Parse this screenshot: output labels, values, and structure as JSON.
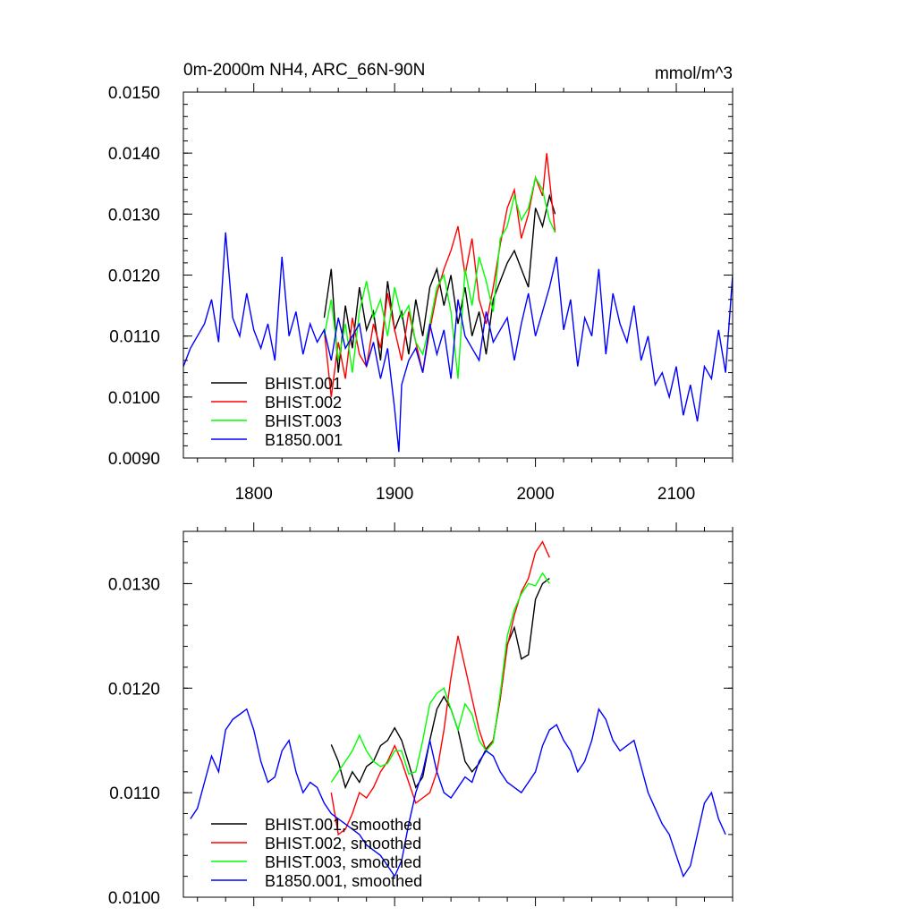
{
  "chart_data": [
    {
      "type": "line",
      "title": "0m-2000m NH4, ARC_66N-90N",
      "units": "mmol/m^3",
      "xlim": [
        1750,
        2140
      ],
      "ylim": [
        0.009,
        0.015
      ],
      "x_ticks": [
        1800,
        1900,
        2000,
        2100
      ],
      "x_tick_labels": [
        "1800",
        "1900",
        "2000",
        "2100"
      ],
      "y_ticks": [
        0.009,
        0.01,
        0.011,
        0.012,
        0.013,
        0.014,
        0.015
      ],
      "y_tick_labels": [
        "0.0090",
        "0.0100",
        "0.0110",
        "0.0120",
        "0.0130",
        "0.0140",
        "0.0150"
      ],
      "legend_position": "bottom-left",
      "series": [
        {
          "name": "BHIST.001",
          "color": "#000000",
          "x": [
            1850,
            1855,
            1860,
            1865,
            1870,
            1875,
            1880,
            1885,
            1890,
            1895,
            1900,
            1905,
            1910,
            1915,
            1920,
            1925,
            1930,
            1935,
            1940,
            1945,
            1950,
            1955,
            1960,
            1965,
            1970,
            1975,
            1980,
            1985,
            1990,
            1995,
            2000,
            2005,
            2010,
            2014
          ],
          "y": [
            0.0113,
            0.0121,
            0.0104,
            0.0115,
            0.0108,
            0.0118,
            0.0111,
            0.0114,
            0.0106,
            0.0119,
            0.0111,
            0.0114,
            0.0107,
            0.0116,
            0.011,
            0.0118,
            0.0121,
            0.0115,
            0.012,
            0.0112,
            0.0118,
            0.011,
            0.0114,
            0.0107,
            0.0116,
            0.0119,
            0.0122,
            0.0124,
            0.0121,
            0.0118,
            0.0131,
            0.0128,
            0.0133,
            0.013
          ]
        },
        {
          "name": "BHIST.002",
          "color": "#ff0000",
          "x": [
            1850,
            1855,
            1860,
            1865,
            1870,
            1875,
            1880,
            1885,
            1890,
            1895,
            1900,
            1905,
            1910,
            1915,
            1920,
            1925,
            1930,
            1935,
            1940,
            1945,
            1950,
            1955,
            1960,
            1965,
            1970,
            1975,
            1980,
            1985,
            1990,
            1995,
            2000,
            2005,
            2008,
            2014
          ],
          "y": [
            0.0111,
            0.01,
            0.0109,
            0.0103,
            0.0113,
            0.0107,
            0.0105,
            0.0112,
            0.0108,
            0.0117,
            0.0111,
            0.0106,
            0.0114,
            0.0109,
            0.0104,
            0.0111,
            0.0117,
            0.0121,
            0.0124,
            0.0128,
            0.012,
            0.0126,
            0.0116,
            0.0112,
            0.0118,
            0.0125,
            0.0131,
            0.0134,
            0.0126,
            0.013,
            0.0136,
            0.0133,
            0.014,
            0.0127
          ]
        },
        {
          "name": "BHIST.003",
          "color": "#00ff00",
          "x": [
            1850,
            1855,
            1860,
            1865,
            1870,
            1875,
            1880,
            1885,
            1890,
            1895,
            1900,
            1905,
            1910,
            1915,
            1920,
            1925,
            1930,
            1935,
            1940,
            1945,
            1950,
            1955,
            1960,
            1965,
            1970,
            1975,
            1980,
            1985,
            1990,
            1995,
            2000,
            2005,
            2010,
            2014
          ],
          "y": [
            0.011,
            0.0116,
            0.0106,
            0.0112,
            0.0104,
            0.0114,
            0.0119,
            0.0113,
            0.0116,
            0.011,
            0.0118,
            0.0113,
            0.0115,
            0.0109,
            0.0107,
            0.0112,
            0.0118,
            0.012,
            0.0114,
            0.0103,
            0.0121,
            0.0115,
            0.0123,
            0.0119,
            0.0114,
            0.0126,
            0.0128,
            0.0133,
            0.0129,
            0.0131,
            0.0136,
            0.0134,
            0.0129,
            0.0127
          ]
        },
        {
          "name": "B1850.001",
          "color": "#0000ff",
          "x": [
            1750,
            1755,
            1760,
            1765,
            1770,
            1775,
            1780,
            1785,
            1790,
            1795,
            1800,
            1805,
            1810,
            1815,
            1820,
            1825,
            1830,
            1835,
            1840,
            1845,
            1850,
            1855,
            1860,
            1865,
            1870,
            1875,
            1880,
            1885,
            1890,
            1895,
            1900,
            1903,
            1905,
            1910,
            1915,
            1920,
            1925,
            1930,
            1935,
            1940,
            1945,
            1950,
            1955,
            1960,
            1965,
            1970,
            1975,
            1980,
            1985,
            1990,
            1995,
            2000,
            2005,
            2010,
            2015,
            2020,
            2025,
            2030,
            2035,
            2040,
            2045,
            2050,
            2055,
            2060,
            2065,
            2070,
            2075,
            2080,
            2085,
            2090,
            2095,
            2100,
            2105,
            2110,
            2115,
            2120,
            2125,
            2130,
            2135,
            2140
          ],
          "y": [
            0.0105,
            0.0108,
            0.011,
            0.0112,
            0.0116,
            0.0109,
            0.0127,
            0.0113,
            0.011,
            0.0117,
            0.0111,
            0.0108,
            0.0112,
            0.0106,
            0.0123,
            0.011,
            0.0114,
            0.0107,
            0.0112,
            0.0109,
            0.0111,
            0.0106,
            0.0113,
            0.0108,
            0.011,
            0.0112,
            0.0105,
            0.0109,
            0.0103,
            0.0108,
            0.0098,
            0.0091,
            0.0102,
            0.0106,
            0.0108,
            0.0104,
            0.0112,
            0.0107,
            0.0111,
            0.0103,
            0.0116,
            0.011,
            0.0108,
            0.0106,
            0.0114,
            0.0109,
            0.0111,
            0.0113,
            0.0106,
            0.0112,
            0.0117,
            0.011,
            0.0114,
            0.0118,
            0.0123,
            0.0111,
            0.0116,
            0.0105,
            0.0113,
            0.011,
            0.0121,
            0.0107,
            0.0117,
            0.0112,
            0.0109,
            0.0115,
            0.0106,
            0.011,
            0.0102,
            0.0104,
            0.01,
            0.0105,
            0.0097,
            0.0102,
            0.0096,
            0.0105,
            0.0103,
            0.0111,
            0.0104,
            0.012
          ]
        }
      ]
    },
    {
      "type": "line",
      "xlim": [
        1750,
        2140
      ],
      "ylim": [
        0.01,
        0.0135
      ],
      "x_ticks": [
        1800,
        1900,
        2000,
        2100
      ],
      "y_ticks": [
        0.01,
        0.011,
        0.012,
        0.013
      ],
      "y_tick_labels": [
        "0.0100",
        "0.0110",
        "0.0120",
        "0.0130"
      ],
      "legend_position": "bottom-left",
      "series": [
        {
          "name": "BHIST.001, smoothed",
          "color": "#000000",
          "x": [
            1855,
            1860,
            1865,
            1870,
            1875,
            1880,
            1885,
            1890,
            1895,
            1900,
            1905,
            1910,
            1915,
            1920,
            1925,
            1930,
            1935,
            1940,
            1945,
            1950,
            1955,
            1960,
            1965,
            1970,
            1975,
            1980,
            1985,
            1990,
            1995,
            2000,
            2005,
            2010
          ],
          "y": [
            0.01146,
            0.0113,
            0.01105,
            0.0112,
            0.0111,
            0.01125,
            0.0113,
            0.01145,
            0.0115,
            0.01162,
            0.0115,
            0.01128,
            0.01105,
            0.01115,
            0.0115,
            0.0118,
            0.01192,
            0.0118,
            0.0116,
            0.0113,
            0.0112,
            0.01128,
            0.01142,
            0.0115,
            0.0119,
            0.01242,
            0.01258,
            0.01228,
            0.01232,
            0.01285,
            0.013,
            0.01305
          ]
        },
        {
          "name": "BHIST.002, smoothed",
          "color": "#ff0000",
          "x": [
            1855,
            1860,
            1865,
            1870,
            1875,
            1880,
            1885,
            1890,
            1895,
            1900,
            1905,
            1910,
            1915,
            1920,
            1925,
            1930,
            1935,
            1940,
            1945,
            1950,
            1955,
            1960,
            1965,
            1970,
            1975,
            1980,
            1985,
            1990,
            1995,
            2000,
            2005,
            2010
          ],
          "y": [
            0.011,
            0.0106,
            0.01065,
            0.0108,
            0.011,
            0.01095,
            0.01105,
            0.0112,
            0.0113,
            0.01145,
            0.0113,
            0.0111,
            0.0109,
            0.01095,
            0.011,
            0.0112,
            0.0116,
            0.0121,
            0.0125,
            0.0122,
            0.0119,
            0.0116,
            0.0114,
            0.0115,
            0.0119,
            0.0124,
            0.0127,
            0.01292,
            0.01305,
            0.0133,
            0.0134,
            0.01325
          ]
        },
        {
          "name": "BHIST.003, smoothed",
          "color": "#00ff00",
          "x": [
            1855,
            1860,
            1865,
            1870,
            1875,
            1880,
            1885,
            1890,
            1895,
            1900,
            1905,
            1910,
            1915,
            1920,
            1925,
            1930,
            1935,
            1940,
            1945,
            1950,
            1955,
            1960,
            1965,
            1970,
            1975,
            1980,
            1985,
            1990,
            1995,
            2000,
            2005,
            2010
          ],
          "y": [
            0.0111,
            0.0112,
            0.0113,
            0.0114,
            0.01155,
            0.0114,
            0.0113,
            0.01125,
            0.01128,
            0.0114,
            0.0114,
            0.01118,
            0.0112,
            0.0115,
            0.01185,
            0.01195,
            0.012,
            0.0118,
            0.0116,
            0.01185,
            0.01175,
            0.0115,
            0.0114,
            0.01148,
            0.01195,
            0.0125,
            0.01275,
            0.0129,
            0.013,
            0.01298,
            0.0131,
            0.013
          ]
        },
        {
          "name": "B1850.001, smoothed",
          "color": "#0000ff",
          "x": [
            1755,
            1760,
            1765,
            1770,
            1775,
            1780,
            1785,
            1790,
            1795,
            1800,
            1805,
            1810,
            1815,
            1820,
            1825,
            1830,
            1835,
            1840,
            1845,
            1850,
            1855,
            1860,
            1865,
            1870,
            1875,
            1880,
            1885,
            1890,
            1895,
            1900,
            1905,
            1910,
            1915,
            1920,
            1925,
            1930,
            1935,
            1940,
            1945,
            1950,
            1955,
            1960,
            1965,
            1970,
            1975,
            1980,
            1985,
            1990,
            1995,
            2000,
            2005,
            2010,
            2015,
            2020,
            2025,
            2030,
            2035,
            2040,
            2045,
            2050,
            2055,
            2060,
            2065,
            2070,
            2075,
            2080,
            2085,
            2090,
            2095,
            2100,
            2105,
            2110,
            2115,
            2120,
            2125,
            2130,
            2135
          ],
          "y": [
            0.01075,
            0.01085,
            0.0111,
            0.01135,
            0.0112,
            0.0116,
            0.0117,
            0.01175,
            0.0118,
            0.0116,
            0.0113,
            0.0111,
            0.01115,
            0.0114,
            0.0115,
            0.0112,
            0.011,
            0.0111,
            0.01105,
            0.0109,
            0.0108,
            0.01075,
            0.0107,
            0.01065,
            0.0106,
            0.0105,
            0.01045,
            0.0104,
            0.0103,
            0.0102,
            0.01035,
            0.0107,
            0.011,
            0.0112,
            0.0115,
            0.0112,
            0.011,
            0.01095,
            0.01105,
            0.01115,
            0.0111,
            0.0113,
            0.0114,
            0.01135,
            0.0112,
            0.0111,
            0.01105,
            0.011,
            0.0111,
            0.0112,
            0.01145,
            0.0116,
            0.01165,
            0.0115,
            0.0114,
            0.0112,
            0.0113,
            0.0115,
            0.0118,
            0.0117,
            0.0115,
            0.0114,
            0.01145,
            0.0115,
            0.01125,
            0.011,
            0.01085,
            0.0107,
            0.0106,
            0.0104,
            0.0102,
            0.0103,
            0.0106,
            0.0109,
            0.011,
            0.01075,
            0.0106
          ]
        }
      ]
    }
  ]
}
